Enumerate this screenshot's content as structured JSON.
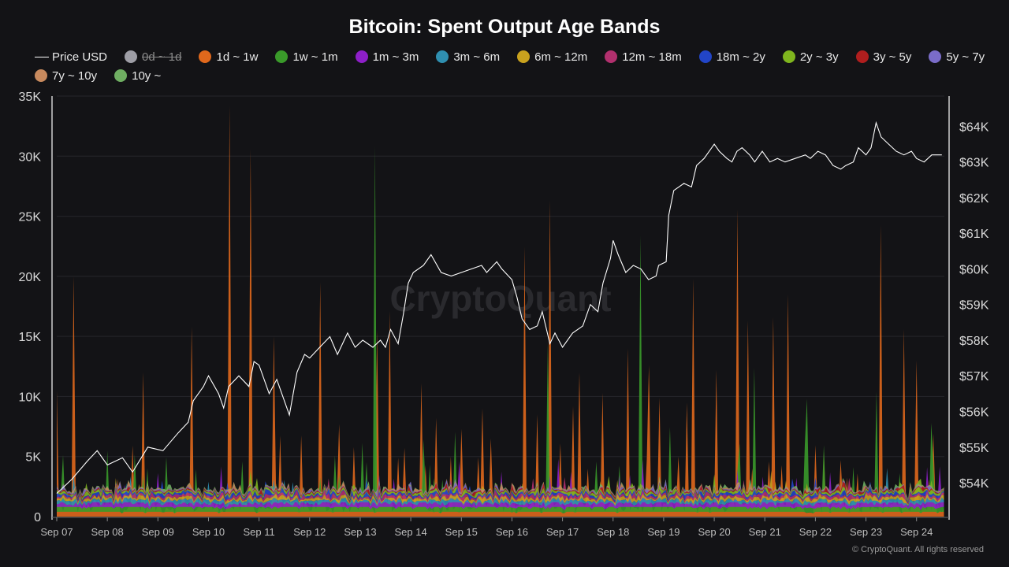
{
  "chart_data": {
    "type": "area",
    "title": "Bitcoin: Spent Output Age Bands",
    "legend_placement": "top",
    "watermark": "CryptoQuant",
    "credit": "© CryptoQuant. All rights reserved",
    "x_tick_labels": [
      "Sep 07",
      "Sep 08",
      "Sep 09",
      "Sep 10",
      "Sep 11",
      "Sep 12",
      "Sep 13",
      "Sep 14",
      "Sep 15",
      "Sep 16",
      "Sep 17",
      "Sep 18",
      "Sep 19",
      "Sep 20",
      "Sep 21",
      "Sep 22",
      "Sep 23",
      "Sep 24"
    ],
    "x_range_days": [
      0,
      17.55
    ],
    "y_left": {
      "ticks": [
        "0",
        "5K",
        "10K",
        "15K",
        "20K",
        "25K",
        "30K",
        "35K"
      ],
      "values": [
        0,
        5000,
        10000,
        15000,
        20000,
        25000,
        30000,
        35000
      ],
      "range": [
        0,
        35000
      ]
    },
    "y_right": {
      "ticks": [
        "$54K",
        "$55K",
        "$56K",
        "$57K",
        "$58K",
        "$59K",
        "$60K",
        "$61K",
        "$62K",
        "$63K",
        "$64K"
      ],
      "values": [
        54000,
        55000,
        56000,
        57000,
        58000,
        59000,
        60000,
        61000,
        62000,
        63000,
        64000
      ],
      "range": [
        53050,
        64850
      ]
    },
    "grid": true,
    "legend": [
      {
        "label": "Price USD",
        "color": "#ffffff",
        "kind": "line",
        "disabled": false
      },
      {
        "label": "0d ~ 1d",
        "color": "#9e9ea6",
        "kind": "dot",
        "disabled": true
      },
      {
        "label": "1d ~ 1w",
        "color": "#e0681c",
        "kind": "dot",
        "disabled": false
      },
      {
        "label": "1w ~ 1m",
        "color": "#3a9a2a",
        "kind": "dot",
        "disabled": false
      },
      {
        "label": "1m ~ 3m",
        "color": "#8e1fc8",
        "kind": "dot",
        "disabled": false
      },
      {
        "label": "3m ~ 6m",
        "color": "#2f8fb0",
        "kind": "dot",
        "disabled": false
      },
      {
        "label": "6m ~ 12m",
        "color": "#c9a21e",
        "kind": "dot",
        "disabled": false
      },
      {
        "label": "12m ~ 18m",
        "color": "#b2306e",
        "kind": "dot",
        "disabled": false
      },
      {
        "label": "18m ~ 2y",
        "color": "#2245c8",
        "kind": "dot",
        "disabled": false
      },
      {
        "label": "2y ~ 3y",
        "color": "#7fb51e",
        "kind": "dot",
        "disabled": false
      },
      {
        "label": "3y ~ 5y",
        "color": "#b01e1e",
        "kind": "dot",
        "disabled": false
      },
      {
        "label": "5y ~ 7y",
        "color": "#7a6cc8",
        "kind": "dot",
        "disabled": false
      },
      {
        "label": "7y ~ 10y",
        "color": "#c88a5e",
        "kind": "dot",
        "disabled": false
      },
      {
        "label": "10y ~",
        "color": "#6fae62",
        "kind": "dot",
        "disabled": false
      }
    ],
    "series": [
      {
        "name": "Price USD",
        "axis": "right",
        "type": "line",
        "color": "#ffffff",
        "points": [
          [
            0,
            53.7
          ],
          [
            0.3,
            54.1
          ],
          [
            0.6,
            54.6
          ],
          [
            0.8,
            54.9
          ],
          [
            1.0,
            54.5
          ],
          [
            1.3,
            54.7
          ],
          [
            1.5,
            54.3
          ],
          [
            1.8,
            55.0
          ],
          [
            2.1,
            54.9
          ],
          [
            2.4,
            55.4
          ],
          [
            2.6,
            55.7
          ],
          [
            2.7,
            56.3
          ],
          [
            2.9,
            56.7
          ],
          [
            3.0,
            57.0
          ],
          [
            3.2,
            56.5
          ],
          [
            3.3,
            56.1
          ],
          [
            3.4,
            56.7
          ],
          [
            3.6,
            57.0
          ],
          [
            3.8,
            56.7
          ],
          [
            3.9,
            57.4
          ],
          [
            4.0,
            57.3
          ],
          [
            4.2,
            56.5
          ],
          [
            4.35,
            56.9
          ],
          [
            4.5,
            56.3
          ],
          [
            4.6,
            55.9
          ],
          [
            4.75,
            57.1
          ],
          [
            4.9,
            57.6
          ],
          [
            5.0,
            57.5
          ],
          [
            5.2,
            57.8
          ],
          [
            5.4,
            58.1
          ],
          [
            5.55,
            57.6
          ],
          [
            5.75,
            58.2
          ],
          [
            5.9,
            57.8
          ],
          [
            6.05,
            58.0
          ],
          [
            6.25,
            57.8
          ],
          [
            6.4,
            58.0
          ],
          [
            6.5,
            57.8
          ],
          [
            6.6,
            58.3
          ],
          [
            6.75,
            57.9
          ],
          [
            6.85,
            58.7
          ],
          [
            6.95,
            59.6
          ],
          [
            7.05,
            59.9
          ],
          [
            7.25,
            60.1
          ],
          [
            7.4,
            60.4
          ],
          [
            7.6,
            59.9
          ],
          [
            7.8,
            59.8
          ],
          [
            8.0,
            59.9
          ],
          [
            8.2,
            60.0
          ],
          [
            8.4,
            60.1
          ],
          [
            8.5,
            59.9
          ],
          [
            8.7,
            60.2
          ],
          [
            8.8,
            60.0
          ],
          [
            9.0,
            59.7
          ],
          [
            9.1,
            59.2
          ],
          [
            9.2,
            58.6
          ],
          [
            9.35,
            58.3
          ],
          [
            9.5,
            58.4
          ],
          [
            9.6,
            58.8
          ],
          [
            9.75,
            57.9
          ],
          [
            9.85,
            58.2
          ],
          [
            10.0,
            57.8
          ],
          [
            10.2,
            58.2
          ],
          [
            10.4,
            58.4
          ],
          [
            10.55,
            59.0
          ],
          [
            10.7,
            58.8
          ],
          [
            10.8,
            59.6
          ],
          [
            10.95,
            60.3
          ],
          [
            11.0,
            60.8
          ],
          [
            11.1,
            60.4
          ],
          [
            11.25,
            59.9
          ],
          [
            11.4,
            60.1
          ],
          [
            11.55,
            60.0
          ],
          [
            11.7,
            59.7
          ],
          [
            11.85,
            59.8
          ],
          [
            11.9,
            60.1
          ],
          [
            12.05,
            60.2
          ],
          [
            12.1,
            61.5
          ],
          [
            12.2,
            62.2
          ],
          [
            12.4,
            62.4
          ],
          [
            12.55,
            62.3
          ],
          [
            12.65,
            62.9
          ],
          [
            12.8,
            63.1
          ],
          [
            12.9,
            63.3
          ],
          [
            13.0,
            63.5
          ],
          [
            13.1,
            63.3
          ],
          [
            13.25,
            63.1
          ],
          [
            13.35,
            63.0
          ],
          [
            13.45,
            63.3
          ],
          [
            13.55,
            63.4
          ],
          [
            13.7,
            63.2
          ],
          [
            13.8,
            63.0
          ],
          [
            13.95,
            63.3
          ],
          [
            14.1,
            63.0
          ],
          [
            14.25,
            63.1
          ],
          [
            14.4,
            63.0
          ],
          [
            14.6,
            63.1
          ],
          [
            14.8,
            63.2
          ],
          [
            14.9,
            63.1
          ],
          [
            15.05,
            63.3
          ],
          [
            15.2,
            63.2
          ],
          [
            15.35,
            62.9
          ],
          [
            15.5,
            62.8
          ],
          [
            15.6,
            62.9
          ],
          [
            15.75,
            63.0
          ],
          [
            15.85,
            63.4
          ],
          [
            16.0,
            63.2
          ],
          [
            16.1,
            63.4
          ],
          [
            16.2,
            64.1
          ],
          [
            16.3,
            63.7
          ],
          [
            16.45,
            63.5
          ],
          [
            16.6,
            63.3
          ],
          [
            16.75,
            63.2
          ],
          [
            16.9,
            63.3
          ],
          [
            17.0,
            63.1
          ],
          [
            17.15,
            63.0
          ],
          [
            17.3,
            63.2
          ],
          [
            17.5,
            63.2
          ]
        ]
      }
    ],
    "stacked_series_spikes_by_name": {
      "1d ~ 1w": [
        [
          0,
          10500
        ],
        [
          0.35,
          20000
        ],
        [
          1.7,
          12000
        ],
        [
          2.65,
          15800
        ],
        [
          3.4,
          34200
        ],
        [
          3.85,
          30600
        ],
        [
          4.3,
          15000
        ],
        [
          5.2,
          19500
        ],
        [
          5.6,
          7700
        ],
        [
          6.35,
          15500
        ],
        [
          6.6,
          17100
        ],
        [
          7.2,
          11100
        ],
        [
          7.8,
          5000
        ],
        [
          8.0,
          7300
        ],
        [
          8.4,
          9000
        ],
        [
          8.6,
          6500
        ],
        [
          9.25,
          22500
        ],
        [
          9.5,
          8500
        ],
        [
          9.75,
          26300
        ],
        [
          10.2,
          9200
        ],
        [
          10.35,
          12000
        ],
        [
          10.8,
          10300
        ],
        [
          11.3,
          14000
        ],
        [
          11.7,
          12600
        ],
        [
          12.3,
          5000
        ],
        [
          12.45,
          9500
        ],
        [
          12.6,
          19800
        ],
        [
          13.05,
          12200
        ],
        [
          13.45,
          25600
        ],
        [
          13.65,
          16300
        ],
        [
          14.15,
          16600
        ],
        [
          14.45,
          18500
        ],
        [
          16.3,
          24300
        ],
        [
          16.75,
          15600
        ],
        [
          17.0,
          13000
        ],
        [
          17.35,
          6900
        ]
      ]
    }
  }
}
